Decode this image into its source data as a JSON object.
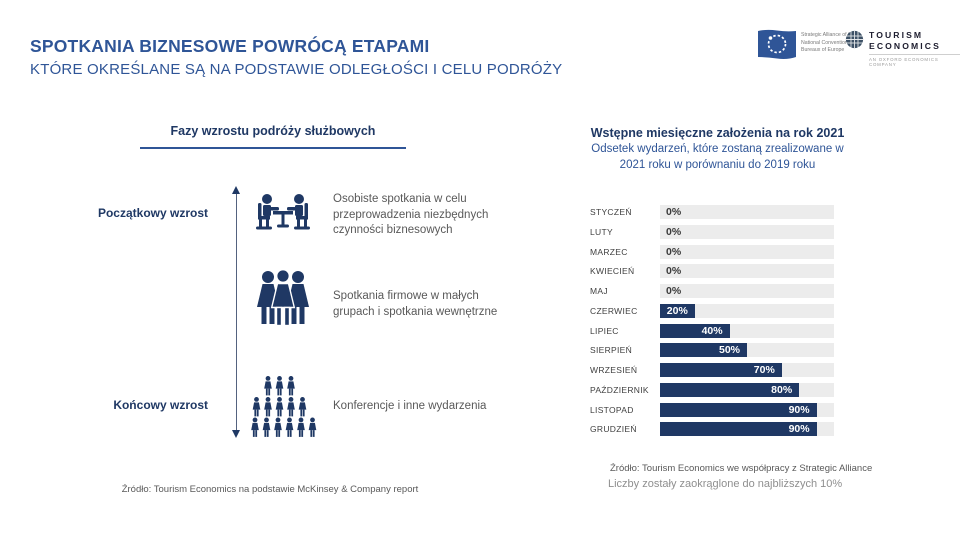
{
  "slide": {
    "title": "SPOTKANIA BIZNESOWE POWRÓCĄ ETAPAMI",
    "subtitle": "KTÓRE OKREŚLANE SĄ NA PODSTAWIE ODLEGŁOŚCI I CELU PODRÓŻY"
  },
  "logos": {
    "strategic_alliance_caption": "Strategic Alliance of the National Convention Bureaux of Europe",
    "tourism_economics_line1": "TOURISM",
    "tourism_economics_line2": "ECONOMICS",
    "tourism_economics_tagline": "AN OXFORD ECONOMICS COMPANY"
  },
  "growth_section": {
    "title": "Fazy wzrostu podróży służbowych",
    "start_label": "Początkowy wzrost",
    "end_label": "Końcowy wzrost",
    "stages": [
      {
        "icon": "meeting-table-icon",
        "description": "Osobiste spotkania w celu przeprowadzenia niezbędnych czynności biznesowych"
      },
      {
        "icon": "small-group-icon",
        "description": "Spotkania firmowe w małych grupach i spotkania wewnętrzne"
      },
      {
        "icon": "conference-crowd-icon",
        "description": "Konferencje i inne wydarzenia"
      }
    ],
    "source": "Źródło: Tourism Economics na podstawie McKinsey & Company report"
  },
  "assumptions_section": {
    "title": "Wstępne miesięczne założenia na rok 2021",
    "subtitle_line1": "Odsetek wydarzeń, które zostaną zrealizowane w",
    "subtitle_line2": "2021 roku w porównaniu do 2019 roku",
    "source": "Źródło: Tourism Economics we współpracy z Strategic Alliance",
    "note": "Liczby zostały zaokrąglone do najbliższych 10%"
  },
  "chart_data": {
    "type": "bar",
    "orientation": "horizontal",
    "title": "Wstępne miesięczne założenia na rok 2021",
    "categories": [
      "STYCZEŃ",
      "LUTY",
      "MARZEC",
      "KWIECIEŃ",
      "MAJ",
      "CZERWIEC",
      "LIPIEC",
      "SIERPIEŃ",
      "WRZESIEŃ",
      "PAŹDZIERNIK",
      "LISTOPAD",
      "GRUDZIEŃ"
    ],
    "values": [
      0,
      0,
      0,
      0,
      0,
      20,
      40,
      50,
      70,
      80,
      90,
      90
    ],
    "value_labels": [
      "0%",
      "0%",
      "0%",
      "0%",
      "0%",
      "20%",
      "40%",
      "50%",
      "70%",
      "80%",
      "90%",
      "90%"
    ],
    "xlim": [
      0,
      100
    ],
    "grid": false,
    "legend": null,
    "bar_color": "#1F3864",
    "track_color": "#ECECEC"
  },
  "colors": {
    "accent_blue": "#2F5597",
    "navy": "#1F3864",
    "body_gray": "#595959",
    "note_gray": "#8F8F8F"
  }
}
